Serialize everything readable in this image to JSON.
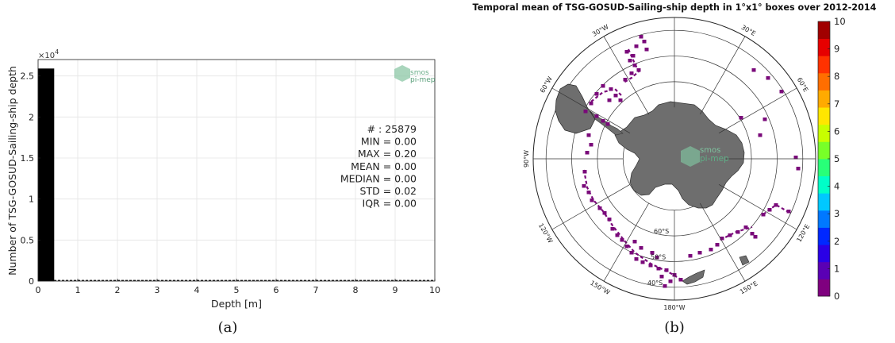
{
  "chart_data": [
    {
      "type": "bar",
      "ylabel": "Number of TSG-GOSUD-Sailing-ship depth",
      "xlabel": "Depth [m]",
      "y_multiplier": "×10^4",
      "xlim": [
        0,
        10
      ],
      "ylim": [
        0,
        27000
      ],
      "x_ticks": [
        "0",
        "1",
        "2",
        "3",
        "4",
        "5",
        "6",
        "7",
        "8",
        "9",
        "10"
      ],
      "y_ticks": [
        "0",
        "0.5",
        "1",
        "1.5",
        "2",
        "2.5"
      ],
      "y_tick_values": [
        0,
        5000,
        10000,
        15000,
        20000,
        25000
      ],
      "bars": [
        {
          "x0": 0.0,
          "x1": 0.4,
          "value": 25879
        },
        {
          "x0": 0.4,
          "x1": 10.0,
          "value": 0
        }
      ],
      "bar_color": "#000000",
      "grid": true,
      "stats": [
        {
          "label": "# : 25879"
        },
        {
          "label": "MIN = 0.00"
        },
        {
          "label": "MAX =  0.20"
        },
        {
          "label": "MEAN = 0.00"
        },
        {
          "label": "MEDIAN = 0.00"
        },
        {
          "label": "STD = 0.02"
        },
        {
          "label": "IQR = 0.00"
        }
      ],
      "logo": {
        "line1": "smos",
        "line2": "pi-mep",
        "color": "#4a9a70"
      },
      "caption": "(a)"
    },
    {
      "type": "heatmap",
      "projection": "south-polar-stereographic",
      "title": "Temporal mean of TSG-GOSUD-Sailing-ship depth in 1°x1° boxes over 2012-2014",
      "longitude_labels": [
        "30°W",
        "30°E",
        "60°E",
        "90°E",
        "120°E",
        "150°E",
        "180°W",
        "150°W",
        "120°W",
        "90°W",
        "60°W"
      ],
      "latitude_labels": [
        "60°S",
        "50°S",
        "40°S"
      ],
      "colorbar": {
        "ticks": [
          "0",
          "1",
          "2",
          "3",
          "4",
          "5",
          "6",
          "7",
          "8",
          "9",
          "10"
        ],
        "range": [
          0,
          10
        ],
        "colors": [
          "#7f007f",
          "#5a00b4",
          "#2a00e6",
          "#0028ff",
          "#0078ff",
          "#00c8ff",
          "#00ffc8",
          "#28ff78",
          "#78ff28",
          "#c8ff00",
          "#ffe600",
          "#ffaa00",
          "#ff6e00",
          "#ff3200",
          "#e60000",
          "#a00000"
        ]
      },
      "data_color": "#7a0a7a",
      "land_color": "#6e6e6e",
      "logo": {
        "line1": "smos",
        "line2": "pi-mep",
        "color": "#4a9a70"
      },
      "caption": "(b)"
    }
  ]
}
